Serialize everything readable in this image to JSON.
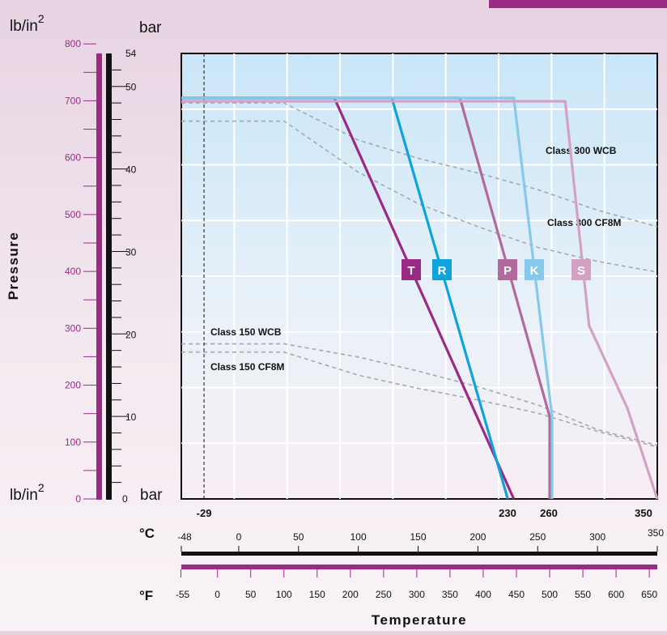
{
  "chart_data": {
    "type": "line",
    "xlabel": "Temperature",
    "ylabel": "Pressure",
    "xlim": [
      -48,
      350
    ],
    "ylim": [
      0,
      54
    ],
    "left_axis": {
      "unit": "lb/in²",
      "ticks": [
        0,
        100,
        200,
        300,
        400,
        500,
        600,
        700,
        800
      ]
    },
    "bar_axis": {
      "unit": "bar",
      "ticks": [
        0,
        10,
        20,
        30,
        40,
        50,
        54
      ]
    },
    "celsius_axis": {
      "unit": "°C",
      "ticks": [
        -48,
        0,
        50,
        100,
        150,
        200,
        250,
        300,
        350
      ]
    },
    "fahrenheit_axis": {
      "unit": "°F",
      "ticks": [
        -55,
        0,
        50,
        100,
        150,
        200,
        250,
        300,
        350,
        400,
        450,
        500,
        550,
        600,
        650
      ]
    },
    "highlight_temps": [
      "-29",
      "230",
      "260",
      "350"
    ],
    "series": [
      {
        "name": "T",
        "color": "#9b2a85",
        "x": [
          -48,
          80,
          230
        ],
        "y": [
          48.6,
          48.6,
          0
        ]
      },
      {
        "name": "R",
        "color": "#0ea3db",
        "x": [
          -48,
          128,
          225
        ],
        "y": [
          48.6,
          48.6,
          0
        ]
      },
      {
        "name": "P",
        "color": "#b2699e",
        "x": [
          -48,
          185,
          260,
          260
        ],
        "y": [
          48.6,
          48.6,
          10,
          0
        ]
      },
      {
        "name": "K",
        "color": "#86c9ea",
        "x": [
          -48,
          230,
          262,
          262
        ],
        "y": [
          48.6,
          48.6,
          10,
          0
        ]
      },
      {
        "name": "S",
        "color": "#d3a1c4",
        "x": [
          -48,
          273,
          293,
          325,
          350
        ],
        "y": [
          48.2,
          48.2,
          21,
          11,
          0
        ]
      }
    ],
    "reference_curves": [
      {
        "name": "Class 300 WCB",
        "x": [
          -48,
          38,
          100,
          150,
          200,
          250,
          300,
          350
        ],
        "y": [
          48.0,
          48.0,
          43.5,
          41.3,
          39.5,
          37.5,
          35.0,
          33.0
        ]
      },
      {
        "name": "Class 300 CF8M",
        "x": [
          -48,
          38,
          100,
          150,
          200,
          250,
          300,
          350
        ],
        "y": [
          45.8,
          45.8,
          39.6,
          35.8,
          33.0,
          30.5,
          28.8,
          27.5
        ]
      },
      {
        "name": "Class 150 WCB",
        "x": [
          -48,
          38,
          100,
          150,
          200,
          250,
          300,
          350
        ],
        "y": [
          18.8,
          18.8,
          17.2,
          15.5,
          13.6,
          11.4,
          8.4,
          6.5
        ]
      },
      {
        "name": "Class 150 CF8M",
        "x": [
          -48,
          38,
          100,
          150,
          200,
          250,
          300,
          350
        ],
        "y": [
          17.8,
          17.8,
          15.0,
          13.4,
          12.0,
          10.4,
          8.2,
          6.3
        ]
      }
    ]
  },
  "labels": {
    "unit_psi_top": "lb/in",
    "unit_psi_bottom": "lb/in",
    "superscript": "2",
    "unit_bar_top": "bar",
    "unit_bar_bottom": "bar",
    "celsius": "°C",
    "fahrenheit": "°F"
  }
}
